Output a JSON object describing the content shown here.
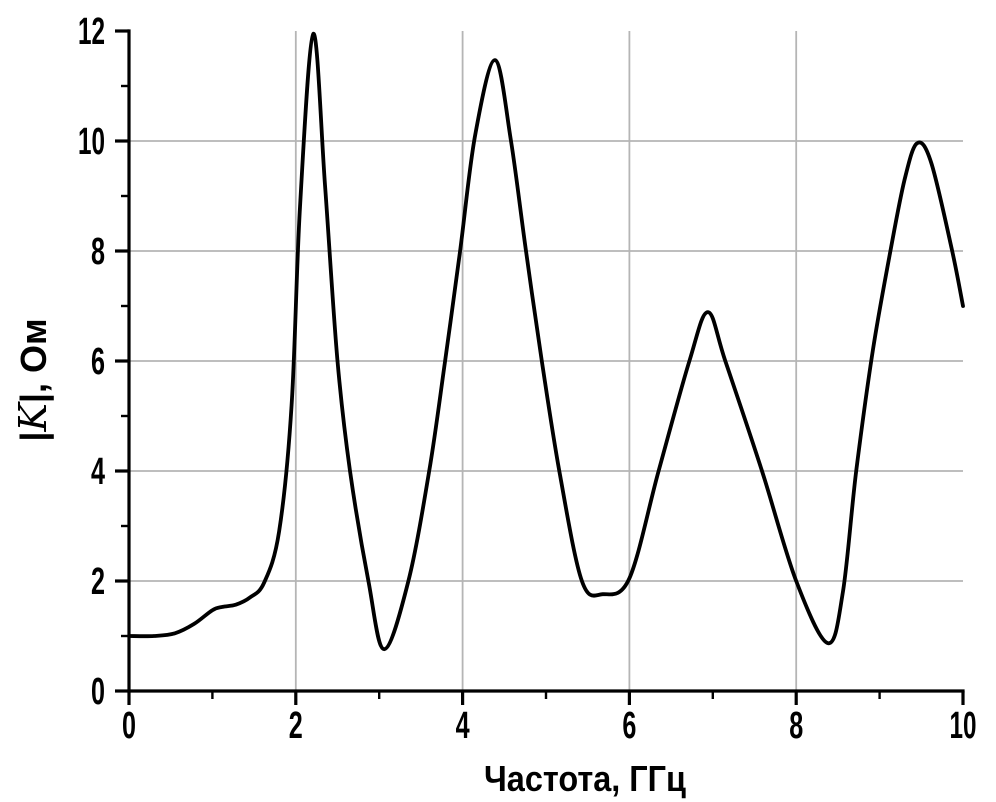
{
  "figure": {
    "background": "#ffffff",
    "foreground": "#000000",
    "grid_color": "#b5b5b5"
  },
  "chart_data": {
    "type": "line",
    "title": "",
    "xlabel": "Частота, ГГц",
    "ylabel": "|K|, Ом",
    "ylabel_parts": {
      "pre": "|",
      "sym": "K",
      "post": "|, Ом"
    },
    "xlim": [
      0,
      10
    ],
    "ylim": [
      0,
      12
    ],
    "x_major_ticks": [
      0,
      2,
      4,
      6,
      8,
      10
    ],
    "x_minor_ticks": [
      1,
      3,
      5,
      7,
      9
    ],
    "y_major_ticks": [
      0,
      2,
      4,
      6,
      8,
      10,
      12
    ],
    "y_minor_ticks": [
      1,
      3,
      5,
      7,
      9,
      11
    ],
    "x_gridlines": [
      2,
      4,
      6,
      8
    ],
    "y_gridlines": [
      2,
      4,
      6,
      8,
      10
    ],
    "grid": true,
    "legend": false,
    "series": [
      {
        "name": "|K|",
        "color": "#000000",
        "points": [
          [
            0.0,
            1.0
          ],
          [
            0.3,
            1.0
          ],
          [
            0.55,
            1.05
          ],
          [
            0.78,
            1.22
          ],
          [
            1.0,
            1.47
          ],
          [
            1.12,
            1.53
          ],
          [
            1.28,
            1.57
          ],
          [
            1.45,
            1.7
          ],
          [
            1.62,
            1.97
          ],
          [
            1.8,
            2.9
          ],
          [
            1.95,
            5.2
          ],
          [
            2.05,
            8.8
          ],
          [
            2.21,
            11.95
          ],
          [
            2.35,
            9.2
          ],
          [
            2.5,
            6.0
          ],
          [
            2.65,
            4.0
          ],
          [
            2.87,
            2.0
          ],
          [
            3.06,
            0.76
          ],
          [
            3.35,
            2.0
          ],
          [
            3.6,
            4.0
          ],
          [
            3.79,
            6.0
          ],
          [
            3.97,
            8.0
          ],
          [
            4.15,
            10.1
          ],
          [
            4.39,
            11.47
          ],
          [
            4.58,
            10.0
          ],
          [
            4.76,
            8.0
          ],
          [
            4.95,
            6.0
          ],
          [
            5.16,
            4.0
          ],
          [
            5.43,
            2.0
          ],
          [
            5.68,
            1.76
          ],
          [
            6.0,
            2.05
          ],
          [
            6.35,
            4.0
          ],
          [
            6.72,
            6.0
          ],
          [
            6.94,
            6.89
          ],
          [
            7.15,
            6.0
          ],
          [
            7.59,
            4.0
          ],
          [
            8.0,
            2.0
          ],
          [
            8.38,
            0.87
          ],
          [
            8.56,
            1.8
          ],
          [
            8.72,
            4.0
          ],
          [
            8.92,
            6.2
          ],
          [
            9.13,
            8.0
          ],
          [
            9.3,
            9.3
          ],
          [
            9.45,
            9.96
          ],
          [
            9.62,
            9.6
          ],
          [
            9.87,
            8.0
          ],
          [
            10.0,
            7.0
          ]
        ]
      }
    ]
  }
}
